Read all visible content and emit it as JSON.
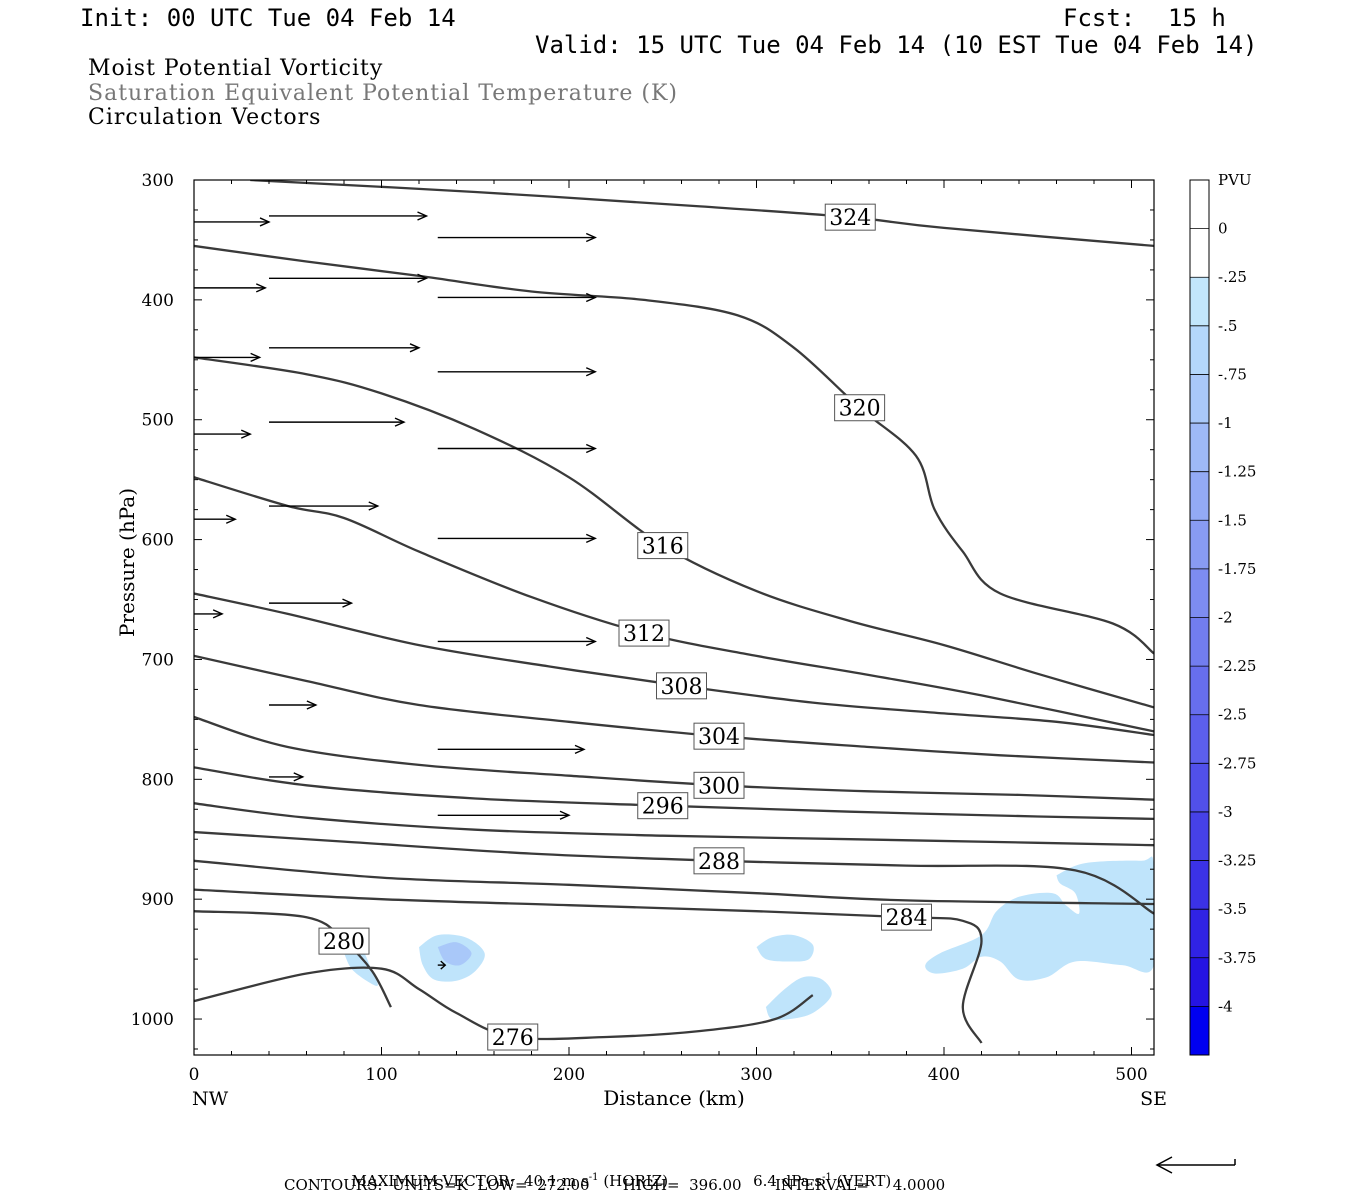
{
  "header": {
    "init": "Init: 00 UTC Tue 04 Feb 14",
    "fcst_label": "Fcst:",
    "fcst_value": "15 h",
    "valid": "Valid: 15 UTC Tue 04 Feb 14 (10 EST Tue 04 Feb 14)"
  },
  "titles": [
    "Moist Potential Vorticity",
    "Saturation Equivalent Potential Temperature (K)",
    "Circulation Vectors"
  ],
  "colors": {
    "title_primary": "#000000",
    "title_secondary": "#777777",
    "contour": "#3a3a3a",
    "pv_light": "#bfe4fb"
  },
  "footer": {
    "max_vector_label": "MAXIMUM VECTOR:",
    "max_vector_horiz": "40.1 m s",
    "horiz_exp": "-1",
    "horiz_tag": "(HORIZ)",
    "max_vector_vert": "6.4 dPa s",
    "vert_exp": "-1",
    "vert_tag": "(VERT)",
    "contours": "CONTOURS:  UNITS=K  LOW=  272.00       HIGH=  396.00       INTERVAL=     4.0000"
  },
  "chart_data": {
    "type": "cross-section contour",
    "xlabel": "Distance (km)",
    "ylabel": "Pressure (hPa)",
    "xlim": [
      0,
      512
    ],
    "ylim": [
      1030,
      300
    ],
    "x_ticks": [
      0,
      100,
      200,
      300,
      400,
      500
    ],
    "y_ticks": [
      300,
      400,
      500,
      600,
      700,
      800,
      900,
      1000
    ],
    "x_end_labels": {
      "left": "NW",
      "right": "SE"
    },
    "colorbar": {
      "title": "PVU",
      "levels": [
        "0",
        "-.25",
        "-.5",
        "-.75",
        "-1",
        "-1.25",
        "-1.5",
        "-1.75",
        "-2",
        "-2.25",
        "-2.5",
        "-2.75",
        "-3",
        "-3.25",
        "-3.5",
        "-3.75",
        "-4"
      ],
      "colors": [
        "#ffffff",
        "#ffffff",
        "#c2e6fc",
        "#b4d7fb",
        "#a9c8f9",
        "#9eb9f7",
        "#93aaf5",
        "#889bf3",
        "#7d8cf1",
        "#727def",
        "#676eed",
        "#5c5fec",
        "#5150ea",
        "#4641e8",
        "#3b32e6",
        "#3023e4",
        "#2514e2",
        "#0000f0"
      ]
    },
    "contours": [
      {
        "value": 324,
        "label": "324",
        "points": [
          [
            30,
            300
          ],
          [
            150,
            310
          ],
          [
            270,
            322
          ],
          [
            350,
            331
          ],
          [
            400,
            340
          ],
          [
            512,
            355
          ]
        ]
      },
      {
        "value": 320,
        "label": "320",
        "points": [
          [
            0,
            355
          ],
          [
            60,
            368
          ],
          [
            120,
            380
          ],
          [
            180,
            393
          ],
          [
            240,
            400
          ],
          [
            290,
            413
          ],
          [
            320,
            440
          ],
          [
            355,
            490
          ],
          [
            385,
            530
          ],
          [
            395,
            575
          ],
          [
            410,
            610
          ],
          [
            430,
            645
          ],
          [
            490,
            670
          ],
          [
            512,
            695
          ]
        ]
      },
      {
        "value": 316,
        "label": "316",
        "points": [
          [
            0,
            448
          ],
          [
            60,
            462
          ],
          [
            100,
            478
          ],
          [
            150,
            508
          ],
          [
            200,
            548
          ],
          [
            250,
            605
          ],
          [
            300,
            643
          ],
          [
            350,
            668
          ],
          [
            400,
            688
          ],
          [
            450,
            712
          ],
          [
            512,
            740
          ]
        ]
      },
      {
        "value": 312,
        "label": "312",
        "points": [
          [
            0,
            548
          ],
          [
            50,
            572
          ],
          [
            80,
            582
          ],
          [
            120,
            610
          ],
          [
            180,
            648
          ],
          [
            240,
            678
          ],
          [
            300,
            697
          ],
          [
            360,
            713
          ],
          [
            420,
            730
          ],
          [
            512,
            760
          ]
        ]
      },
      {
        "value": 308,
        "label": "308",
        "points": [
          [
            0,
            645
          ],
          [
            50,
            662
          ],
          [
            120,
            688
          ],
          [
            190,
            706
          ],
          [
            260,
            722
          ],
          [
            330,
            736
          ],
          [
            400,
            745
          ],
          [
            460,
            752
          ],
          [
            512,
            763
          ]
        ]
      },
      {
        "value": 304,
        "label": "304",
        "points": [
          [
            0,
            697
          ],
          [
            60,
            718
          ],
          [
            120,
            738
          ],
          [
            200,
            752
          ],
          [
            280,
            764
          ],
          [
            360,
            773
          ],
          [
            430,
            780
          ],
          [
            512,
            786
          ]
        ]
      },
      {
        "value": 300,
        "label": "300",
        "points": [
          [
            0,
            748
          ],
          [
            50,
            773
          ],
          [
            120,
            788
          ],
          [
            200,
            797
          ],
          [
            280,
            805
          ],
          [
            360,
            810
          ],
          [
            440,
            813
          ],
          [
            512,
            817
          ]
        ]
      },
      {
        "value": 296,
        "label": "296",
        "points": [
          [
            0,
            790
          ],
          [
            60,
            805
          ],
          [
            150,
            816
          ],
          [
            250,
            822
          ],
          [
            350,
            827
          ],
          [
            450,
            831
          ],
          [
            512,
            833
          ]
        ]
      },
      {
        "value": 292,
        "label": "",
        "points": [
          [
            0,
            820
          ],
          [
            60,
            832
          ],
          [
            150,
            842
          ],
          [
            250,
            847
          ],
          [
            350,
            850
          ],
          [
            450,
            853
          ],
          [
            512,
            855
          ]
        ]
      },
      {
        "value": 288,
        "label": "288",
        "points": [
          [
            0,
            844
          ],
          [
            80,
            852
          ],
          [
            180,
            862
          ],
          [
            280,
            868
          ],
          [
            380,
            872
          ],
          [
            470,
            876
          ],
          [
            512,
            912
          ]
        ]
      },
      {
        "value": 286,
        "label": "",
        "points": [
          [
            0,
            868
          ],
          [
            100,
            882
          ],
          [
            200,
            888
          ],
          [
            300,
            895
          ],
          [
            380,
            901
          ],
          [
            512,
            904
          ]
        ]
      },
      {
        "value": 284,
        "label": "284",
        "points": [
          [
            0,
            892
          ],
          [
            100,
            900
          ],
          [
            200,
            905
          ],
          [
            300,
            910
          ],
          [
            380,
            915
          ],
          [
            410,
            918
          ],
          [
            420,
            935
          ],
          [
            410,
            990
          ],
          [
            420,
            1020
          ]
        ]
      },
      {
        "value": 280,
        "label": "280",
        "points": [
          [
            0,
            910
          ],
          [
            60,
            915
          ],
          [
            80,
            935
          ],
          [
            95,
            960
          ],
          [
            105,
            990
          ]
        ]
      },
      {
        "value": 276,
        "label": "276",
        "points": [
          [
            0,
            985
          ],
          [
            60,
            962
          ],
          [
            100,
            958
          ],
          [
            120,
            975
          ],
          [
            140,
            995
          ],
          [
            170,
            1015
          ],
          [
            220,
            1015
          ],
          [
            270,
            1010
          ],
          [
            310,
            1000
          ],
          [
            330,
            980
          ]
        ]
      }
    ],
    "vectors": [
      {
        "x": 0,
        "y": 335,
        "u": 40,
        "v": 0
      },
      {
        "x": 40,
        "y": 330,
        "u": 84,
        "v": 0
      },
      {
        "x": 130,
        "y": 348,
        "u": 84,
        "v": 0
      },
      {
        "x": 0,
        "y": 390,
        "u": 38,
        "v": 0
      },
      {
        "x": 40,
        "y": 382,
        "u": 84,
        "v": 0
      },
      {
        "x": 130,
        "y": 398,
        "u": 84,
        "v": 0
      },
      {
        "x": 0,
        "y": 448,
        "u": 35,
        "v": 0
      },
      {
        "x": 40,
        "y": 440,
        "u": 80,
        "v": 0
      },
      {
        "x": 130,
        "y": 460,
        "u": 84,
        "v": 0
      },
      {
        "x": 0,
        "y": 512,
        "u": 30,
        "v": 0
      },
      {
        "x": 40,
        "y": 502,
        "u": 72,
        "v": 0
      },
      {
        "x": 130,
        "y": 524,
        "u": 84,
        "v": 0
      },
      {
        "x": 0,
        "y": 583,
        "u": 22,
        "v": 0
      },
      {
        "x": 40,
        "y": 572,
        "u": 58,
        "v": 0
      },
      {
        "x": 130,
        "y": 599,
        "u": 84,
        "v": 0
      },
      {
        "x": 0,
        "y": 662,
        "u": 15,
        "v": 0
      },
      {
        "x": 40,
        "y": 653,
        "u": 44,
        "v": 0
      },
      {
        "x": 130,
        "y": 685,
        "u": 84,
        "v": 0
      },
      {
        "x": 40,
        "y": 738,
        "u": 25,
        "v": 0
      },
      {
        "x": 130,
        "y": 775,
        "u": 78,
        "v": 0
      },
      {
        "x": 40,
        "y": 798,
        "u": 18,
        "v": 0
      },
      {
        "x": 130,
        "y": 830,
        "u": 70,
        "v": 0
      },
      {
        "x": 130,
        "y": 955,
        "u": 4,
        "v": 0
      }
    ],
    "pv_regions": [
      {
        "color": "#bfe4fb",
        "points": [
          [
            460,
            880
          ],
          [
            475,
            870
          ],
          [
            505,
            868
          ],
          [
            512,
            872
          ],
          [
            512,
            955
          ],
          [
            495,
            955
          ],
          [
            470,
            952
          ],
          [
            455,
            965
          ],
          [
            440,
            967
          ],
          [
            430,
            952
          ],
          [
            420,
            948
          ],
          [
            410,
            958
          ],
          [
            395,
            962
          ],
          [
            390,
            955
          ],
          [
            398,
            945
          ],
          [
            420,
            930
          ],
          [
            428,
            910
          ],
          [
            440,
            898
          ],
          [
            458,
            895
          ],
          [
            465,
            905
          ],
          [
            472,
            912
          ],
          [
            470,
            895
          ],
          [
            462,
            887
          ]
        ]
      },
      {
        "color": "#bfe4fb",
        "points": [
          [
            300,
            940
          ],
          [
            308,
            932
          ],
          [
            320,
            930
          ],
          [
            330,
            938
          ],
          [
            328,
            950
          ],
          [
            318,
            952
          ],
          [
            305,
            950
          ]
        ]
      },
      {
        "color": "#bfe4fb",
        "points": [
          [
            305,
            990
          ],
          [
            315,
            975
          ],
          [
            325,
            965
          ],
          [
            335,
            967
          ],
          [
            340,
            980
          ],
          [
            330,
            995
          ],
          [
            318,
            1000
          ],
          [
            308,
            1000
          ]
        ]
      },
      {
        "color": "#bfe4fb",
        "points": [
          [
            120,
            940
          ],
          [
            130,
            930
          ],
          [
            145,
            932
          ],
          [
            155,
            945
          ],
          [
            150,
            960
          ],
          [
            140,
            968
          ],
          [
            128,
            967
          ],
          [
            122,
            955
          ]
        ]
      },
      {
        "color": "#a9c8f9",
        "points": [
          [
            130,
            940
          ],
          [
            140,
            936
          ],
          [
            148,
            945
          ],
          [
            142,
            955
          ],
          [
            134,
            952
          ]
        ]
      },
      {
        "color": "#bfe4fb",
        "points": [
          [
            80,
            945
          ],
          [
            88,
            938
          ],
          [
            95,
            960
          ],
          [
            98,
            972
          ],
          [
            92,
            968
          ],
          [
            84,
            958
          ]
        ]
      }
    ]
  }
}
